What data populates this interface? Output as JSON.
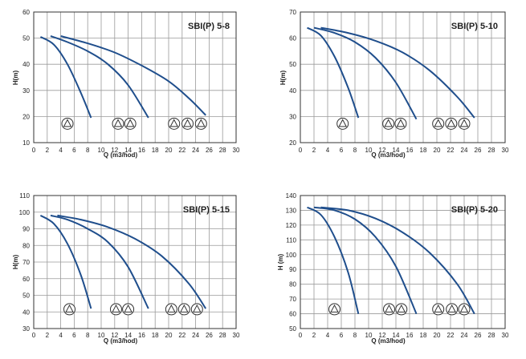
{
  "colors": {
    "curve": "#1f4e8c",
    "grid": "#9a9a9a",
    "frame": "#333333",
    "text": "#222222",
    "pump_icon_stroke": "#333333",
    "pump_icon_fill": "#ffffff"
  },
  "chart_data": [
    {
      "type": "line",
      "title": "SBI(P) 5-8",
      "xlabel": "Q (m3/hod)",
      "ylabel": "H(m)",
      "xlim": [
        0,
        30
      ],
      "ylim": [
        10,
        60
      ],
      "xticks": [
        "0",
        "2",
        "4",
        "6",
        "8",
        "10",
        "12",
        "14",
        "16",
        "18",
        "20",
        "22",
        "24",
        "26",
        "28",
        "30"
      ],
      "yticks": [
        "10",
        "20",
        "30",
        "40",
        "50",
        "60"
      ],
      "grid": true,
      "series": [
        {
          "points": [
            [
              1.0,
              50.5
            ],
            [
              3.0,
              47.5
            ],
            [
              5.0,
              40.0
            ],
            [
              7.0,
              29.0
            ],
            [
              8.5,
              19.5
            ]
          ],
          "pump_icons_x": [
            5
          ]
        },
        {
          "points": [
            [
              2.5,
              50.8
            ],
            [
              5.0,
              48.5
            ],
            [
              8.0,
              45.0
            ],
            [
              11.0,
              40.0
            ],
            [
              14.0,
              32.0
            ],
            [
              17.0,
              19.5
            ]
          ],
          "pump_icons_x": [
            12.5,
            14.3
          ]
        },
        {
          "points": [
            [
              4.0,
              50.8
            ],
            [
              8.0,
              48.0
            ],
            [
              12.0,
              44.5
            ],
            [
              16.0,
              39.5
            ],
            [
              20.0,
              33.5
            ],
            [
              23.0,
              27.0
            ],
            [
              25.5,
              20.5
            ]
          ],
          "pump_icons_x": [
            20.8,
            22.8,
            24.8
          ]
        }
      ]
    },
    {
      "type": "line",
      "title": "SBI(P) 5-10",
      "xlabel": "Q (m3/hod)",
      "ylabel": "H(m)",
      "xlim": [
        0,
        30
      ],
      "ylim": [
        20,
        70
      ],
      "xticks": [
        "0",
        "2",
        "4",
        "6",
        "8",
        "10",
        "12",
        "14",
        "16",
        "18",
        "20",
        "22",
        "24",
        "26",
        "28",
        "30"
      ],
      "yticks": [
        "20",
        "30",
        "40",
        "50",
        "60",
        "70"
      ],
      "grid": true,
      "series": [
        {
          "points": [
            [
              1.0,
              64.0
            ],
            [
              3.0,
              61.0
            ],
            [
              5.0,
              53.0
            ],
            [
              7.0,
              41.0
            ],
            [
              8.5,
              29.5
            ]
          ],
          "pump_icons_x": [
            6.2
          ]
        },
        {
          "points": [
            [
              2.0,
              64.0
            ],
            [
              5.0,
              62.0
            ],
            [
              8.0,
              58.5
            ],
            [
              11.0,
              52.5
            ],
            [
              14.0,
              43.0
            ],
            [
              17.0,
              29.0
            ]
          ],
          "pump_icons_x": [
            12.9,
            14.7
          ]
        },
        {
          "points": [
            [
              3.0,
              64.0
            ],
            [
              7.0,
              62.0
            ],
            [
              11.0,
              59.0
            ],
            [
              15.0,
              54.5
            ],
            [
              19.0,
              47.5
            ],
            [
              23.0,
              37.5
            ],
            [
              25.5,
              29.5
            ]
          ],
          "pump_icons_x": [
            20.2,
            22.1,
            24.0
          ]
        }
      ]
    },
    {
      "type": "line",
      "title": "SBI(P) 5-15",
      "xlabel": "Q (m3/hod)",
      "ylabel": "H(m)",
      "xlim": [
        0,
        30
      ],
      "ylim": [
        30,
        110
      ],
      "xticks": [
        "0",
        "2",
        "4",
        "6",
        "8",
        "10",
        "12",
        "14",
        "16",
        "18",
        "20",
        "22",
        "24",
        "26",
        "28",
        "30"
      ],
      "yticks": [
        "30",
        "40",
        "50",
        "60",
        "70",
        "80",
        "90",
        "100",
        "110"
      ],
      "grid": true,
      "series": [
        {
          "points": [
            [
              1.0,
              98.0
            ],
            [
              3.0,
              93.0
            ],
            [
              5.0,
              81.0
            ],
            [
              7.0,
              62.0
            ],
            [
              8.5,
              42.0
            ]
          ],
          "pump_icons_x": [
            5.3
          ]
        },
        {
          "points": [
            [
              2.5,
              98.0
            ],
            [
              5.0,
              95.5
            ],
            [
              8.0,
              90.0
            ],
            [
              11.0,
              82.0
            ],
            [
              14.0,
              67.0
            ],
            [
              17.0,
              42.0
            ]
          ],
          "pump_icons_x": [
            12.2,
            14.0
          ]
        },
        {
          "points": [
            [
              3.5,
              98.0
            ],
            [
              7.0,
              95.5
            ],
            [
              11.0,
              91.0
            ],
            [
              15.0,
              84.0
            ],
            [
              19.0,
              73.5
            ],
            [
              23.0,
              57.0
            ],
            [
              25.5,
              42.0
            ]
          ],
          "pump_icons_x": [
            20.4,
            22.3,
            24.2
          ]
        }
      ]
    },
    {
      "type": "line",
      "title": "SBI(P) 5-20",
      "xlabel": "Q (m3/hod)",
      "ylabel": "H (m)",
      "xlim": [
        0,
        30
      ],
      "ylim": [
        50,
        140
      ],
      "xticks": [
        "0",
        "2",
        "4",
        "6",
        "8",
        "10",
        "12",
        "14",
        "16",
        "18",
        "20",
        "22",
        "24",
        "26",
        "28",
        "30"
      ],
      "yticks": [
        "50",
        "60",
        "70",
        "80",
        "90",
        "100",
        "110",
        "120",
        "130",
        "140"
      ],
      "grid": true,
      "series": [
        {
          "points": [
            [
              1.0,
              132.0
            ],
            [
              3.0,
              127.0
            ],
            [
              5.0,
              112.0
            ],
            [
              7.0,
              88.0
            ],
            [
              8.5,
              60.0
            ]
          ],
          "pump_icons_x": [
            5.0
          ]
        },
        {
          "points": [
            [
              2.0,
              132.0
            ],
            [
              5.0,
              130.0
            ],
            [
              8.0,
              124.0
            ],
            [
              11.0,
              112.0
            ],
            [
              14.0,
              92.0
            ],
            [
              17.0,
              60.0
            ]
          ],
          "pump_icons_x": [
            13.0,
            14.8
          ]
        },
        {
          "points": [
            [
              3.0,
              132.0
            ],
            [
              7.0,
              130.0
            ],
            [
              11.0,
              124.5
            ],
            [
              15.0,
              115.0
            ],
            [
              19.0,
              101.0
            ],
            [
              23.0,
              80.0
            ],
            [
              25.5,
              60.0
            ]
          ],
          "pump_icons_x": [
            20.2,
            22.2,
            24.0
          ]
        }
      ]
    }
  ]
}
